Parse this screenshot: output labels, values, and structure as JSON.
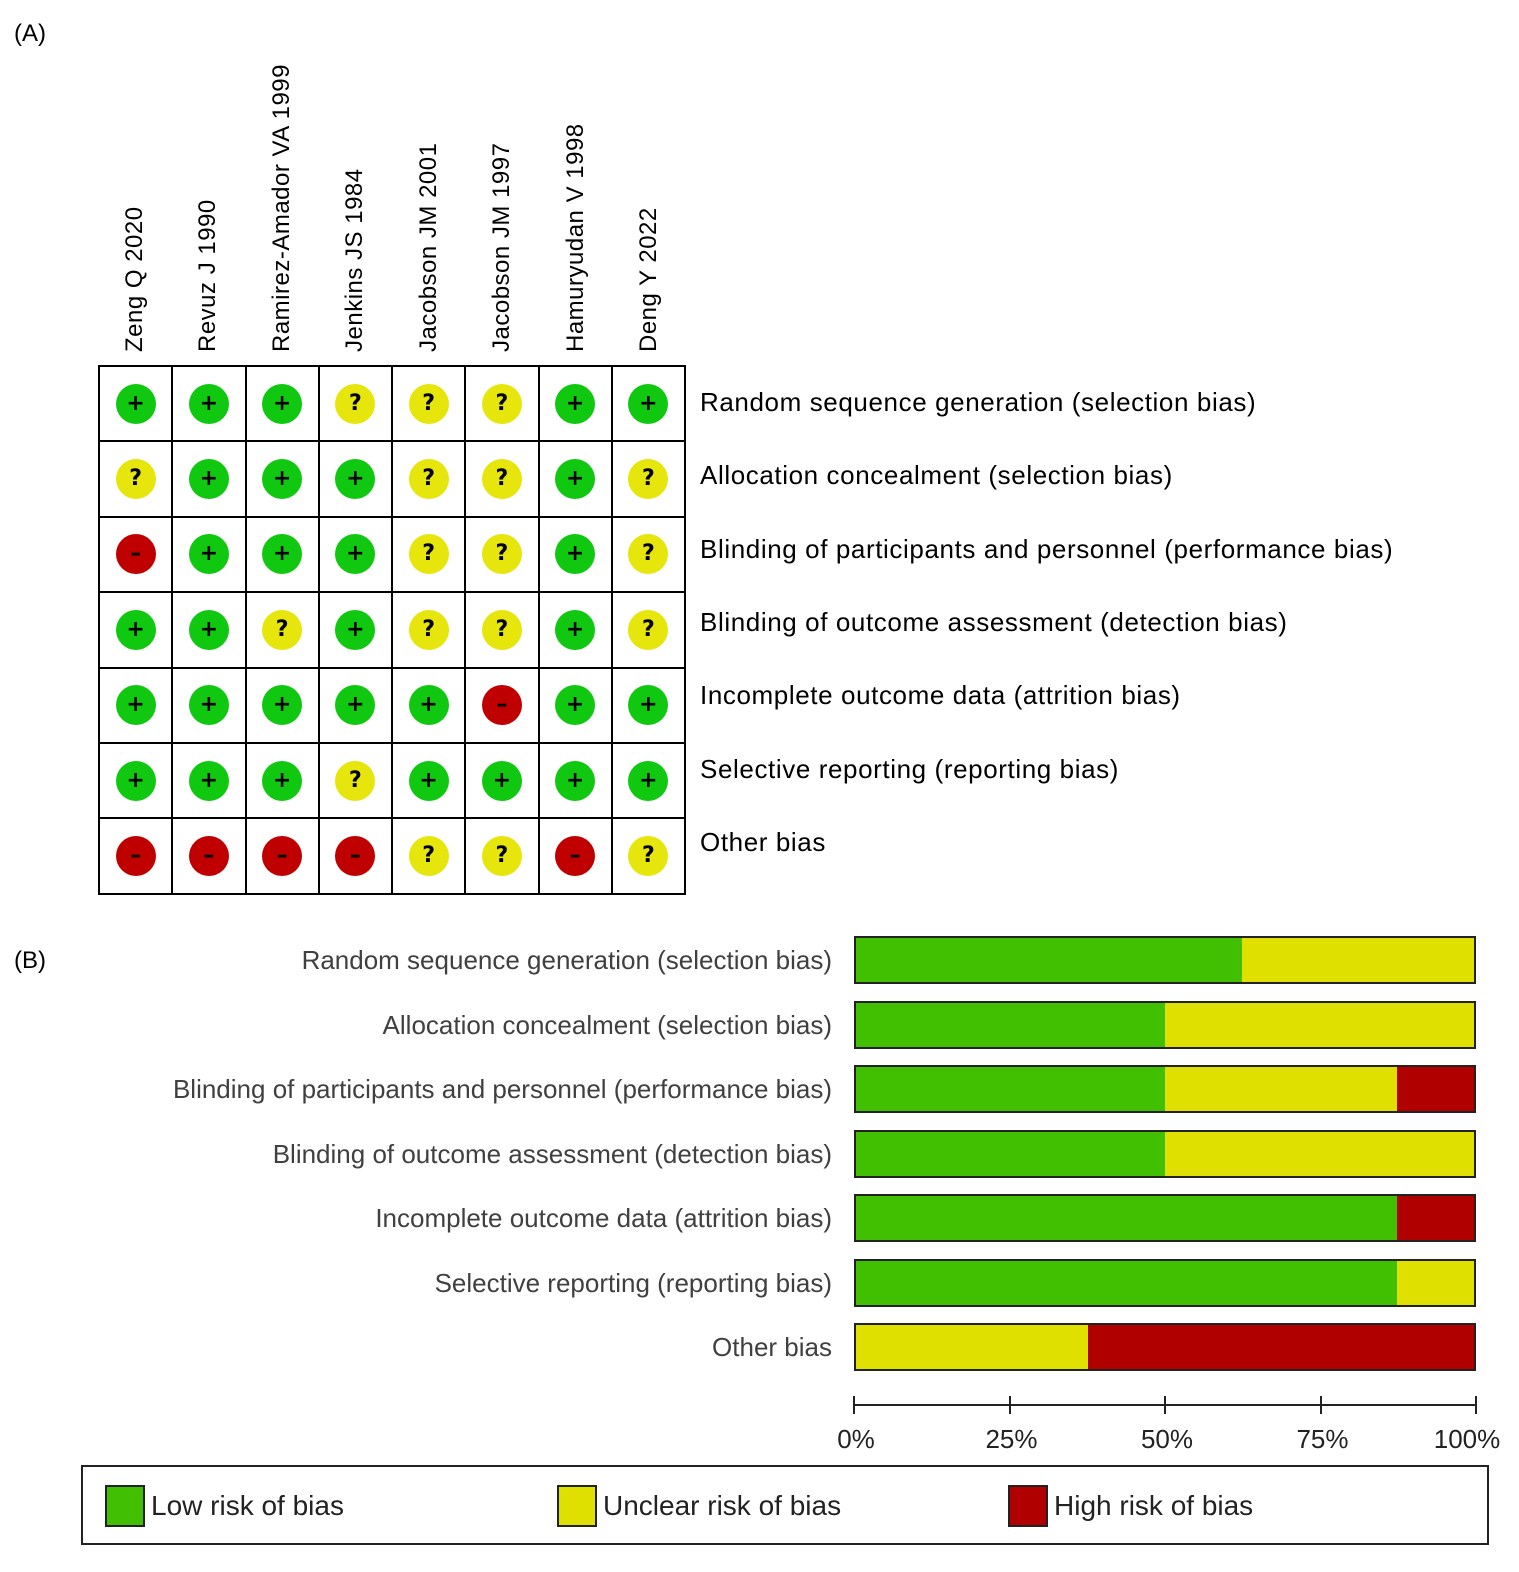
{
  "panel_a_label": "(A)",
  "panel_b_label": "(B)",
  "symbols": {
    "low": "+",
    "unclear": "?",
    "high": "–"
  },
  "colors": {
    "low_dot": "#10c810",
    "unclear_dot": "#e6e60c",
    "high_dot": "#c00000",
    "low_bar": "#40c000",
    "unclear_bar": "#e0e000",
    "high_bar": "#b00000"
  },
  "chart_data": [
    {
      "type": "table",
      "studies": [
        "Zeng Q 2020",
        "Revuz J 1990",
        "Ramirez-Amador VA 1999",
        "Jenkins JS 1984",
        "Jacobson JM 2001",
        "Jacobson JM 1997",
        "Hamuryudan V 1998",
        "Deng Y 2022"
      ],
      "domains": [
        "Random sequence generation (selection bias)",
        "Allocation concealment (selection bias)",
        "Blinding of participants and personnel (performance bias)",
        "Blinding of outcome assessment (detection bias)",
        "Incomplete outcome data (attrition bias)",
        "Selective reporting (reporting bias)",
        "Other bias"
      ],
      "judgements": [
        [
          "low",
          "low",
          "low",
          "unclear",
          "unclear",
          "unclear",
          "low",
          "low"
        ],
        [
          "unclear",
          "low",
          "low",
          "low",
          "unclear",
          "unclear",
          "low",
          "unclear"
        ],
        [
          "high",
          "low",
          "low",
          "low",
          "unclear",
          "unclear",
          "low",
          "unclear"
        ],
        [
          "low",
          "low",
          "unclear",
          "low",
          "unclear",
          "unclear",
          "low",
          "unclear"
        ],
        [
          "low",
          "low",
          "low",
          "low",
          "low",
          "high",
          "low",
          "low"
        ],
        [
          "low",
          "low",
          "low",
          "unclear",
          "low",
          "low",
          "low",
          "low"
        ],
        [
          "high",
          "high",
          "high",
          "high",
          "unclear",
          "unclear",
          "high",
          "unclear"
        ]
      ]
    },
    {
      "type": "bar",
      "stacked": true,
      "orientation": "horizontal",
      "categories": [
        "Random sequence generation (selection bias)",
        "Allocation concealment (selection bias)",
        "Blinding of participants and personnel (performance bias)",
        "Blinding of outcome assessment (detection bias)",
        "Incomplete outcome data (attrition bias)",
        "Selective reporting (reporting bias)",
        "Other bias"
      ],
      "series": [
        {
          "name": "Low risk of bias",
          "key": "low",
          "values": [
            62.5,
            50,
            50,
            50,
            87.5,
            87.5,
            0
          ]
        },
        {
          "name": "Unclear risk of bias",
          "key": "unclear",
          "values": [
            37.5,
            50,
            37.5,
            50,
            0,
            12.5,
            37.5
          ]
        },
        {
          "name": "High risk of bias",
          "key": "high",
          "values": [
            0,
            0,
            12.5,
            0,
            12.5,
            0,
            62.5
          ]
        }
      ],
      "xlim": [
        0,
        100
      ],
      "tick_labels": [
        "0%",
        "25%",
        "50%",
        "75%",
        "100%"
      ],
      "legend_position": "bottom"
    }
  ]
}
